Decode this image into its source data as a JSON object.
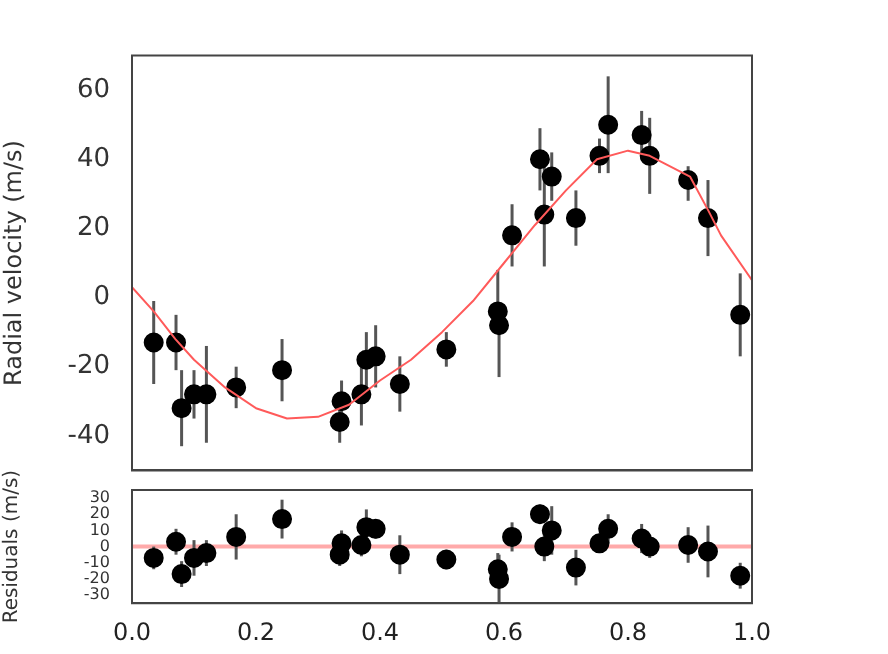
{
  "chart_data": [
    {
      "type": "scatter",
      "ylabel": "Radial velocity (m/s)",
      "xlim": [
        0,
        1
      ],
      "xticks": [
        0,
        0.2,
        0.4,
        0.6,
        0.8,
        1
      ],
      "ylim": [
        -50,
        70
      ],
      "yticks": [
        -40,
        -20,
        0,
        20,
        40,
        60
      ],
      "tick_labels": "y",
      "grid": false,
      "legend": false,
      "series": [
        {
          "type": "scatter",
          "marker": "circle",
          "color": "#000000",
          "x": [
            0.035,
            0.071,
            0.08,
            0.1,
            0.12,
            0.168,
            0.242,
            0.335,
            0.338,
            0.37,
            0.378,
            0.393,
            0.432,
            0.507,
            0.59,
            0.592,
            0.613,
            0.658,
            0.665,
            0.677,
            0.716,
            0.754,
            0.768,
            0.822,
            0.835,
            0.897,
            0.929,
            0.981
          ],
          "values": [
            -13,
            -13,
            -32,
            -28,
            -28,
            -26,
            -21,
            -36,
            -30,
            -28,
            -18,
            -17,
            -25,
            -15,
            -4,
            -8,
            18,
            40,
            24,
            35,
            23,
            41,
            50,
            47,
            41,
            34,
            23,
            -5
          ],
          "errors": [
            [
              -25,
              -1
            ],
            [
              -21,
              -5
            ],
            [
              -43,
              -21
            ],
            [
              -35,
              -21
            ],
            [
              -42,
              -14
            ],
            [
              -32,
              -20
            ],
            [
              -30,
              -12
            ],
            [
              -42,
              -30
            ],
            [
              -35,
              -24
            ],
            [
              -37,
              -19
            ],
            [
              -26,
              -10
            ],
            [
              -26,
              -8
            ],
            [
              -33,
              -17
            ],
            [
              -20,
              -10
            ],
            [
              -10,
              8
            ],
            [
              -23,
              -2
            ],
            [
              9,
              27
            ],
            [
              31,
              49
            ],
            [
              9,
              38
            ],
            [
              28,
              42
            ],
            [
              15,
              31
            ],
            [
              36,
              46
            ],
            [
              36,
              64
            ],
            [
              40,
              54
            ],
            [
              30,
              52
            ],
            [
              28,
              38
            ],
            [
              12,
              34
            ],
            [
              -17,
              7
            ]
          ]
        },
        {
          "type": "line",
          "color": "#ff5a5a",
          "x": [
            0,
            0.035,
            0.07,
            0.1,
            0.15,
            0.2,
            0.25,
            0.3,
            0.35,
            0.4,
            0.45,
            0.5,
            0.55,
            0.6,
            0.65,
            0.7,
            0.75,
            0.8,
            0.835,
            0.9,
            0.93,
            0.95,
            1
          ],
          "values": [
            3,
            -4,
            -12,
            -18,
            -26,
            -32,
            -35,
            -34.5,
            -31,
            -24,
            -18,
            -10,
            -1,
            10,
            21,
            31,
            40,
            42.5,
            41,
            35,
            25,
            18,
            5
          ]
        }
      ]
    },
    {
      "type": "scatter",
      "ylabel": "Residuals (m/s)",
      "xlim": [
        0,
        1
      ],
      "xticks": [
        {
          "value": 0,
          "label": "0.0"
        },
        0.2,
        0.4,
        0.6,
        0.8,
        {
          "value": 1,
          "label": "1.0"
        }
      ],
      "ylim": [
        -35,
        35
      ],
      "yticks": [
        -30,
        -20,
        -10,
        0,
        10,
        20,
        30
      ],
      "grid": false,
      "legend": false,
      "marker": "circle",
      "ref_lines": [
        {
          "axis": "y",
          "value": 0,
          "color": "#ffaaaa"
        }
      ],
      "series": [
        {
          "type": "scatter",
          "color": "#000000",
          "x": [
            0.035,
            0.071,
            0.08,
            0.1,
            0.12,
            0.168,
            0.242,
            0.335,
            0.338,
            0.37,
            0.378,
            0.393,
            0.432,
            0.507,
            0.59,
            0.592,
            0.613,
            0.658,
            0.665,
            0.677,
            0.716,
            0.754,
            0.768,
            0.822,
            0.835,
            0.897,
            0.929,
            0.981
          ],
          "values": [
            -7,
            3,
            -17,
            -7,
            -4,
            6,
            17,
            -5,
            2,
            1,
            12,
            11,
            -5,
            -8,
            -14,
            -20,
            6,
            20,
            0,
            10,
            -13,
            2,
            11,
            5,
            0,
            1,
            -3,
            -18
          ],
          "errors": [
            7,
            8,
            8,
            11,
            8,
            14,
            12,
            7,
            8,
            7,
            11,
            6,
            12,
            6,
            10,
            15,
            9,
            6,
            9,
            15,
            11,
            6,
            9,
            9,
            7,
            11,
            16,
            8
          ]
        }
      ]
    }
  ]
}
